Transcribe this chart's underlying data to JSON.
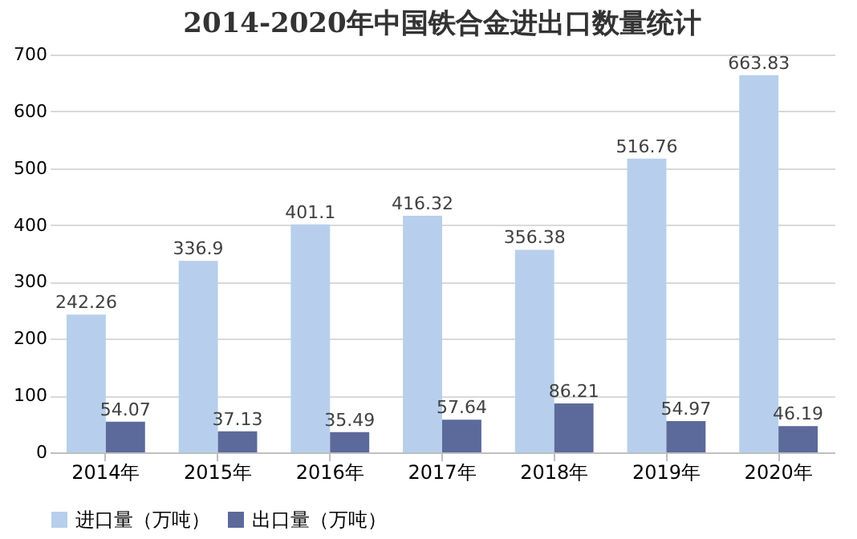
{
  "chart_data": {
    "type": "bar",
    "title": "2014-2020年中国铁合金进出口数量统计",
    "categories": [
      "2014年",
      "2015年",
      "2016年",
      "2017年",
      "2018年",
      "2019年",
      "2020年"
    ],
    "series": [
      {
        "name": "进口量（万吨）",
        "color": "#b7cfec",
        "values": [
          242.26,
          336.9,
          401.1,
          416.32,
          356.38,
          516.76,
          663.83
        ]
      },
      {
        "name": "出口量（万吨）",
        "color": "#5b6a9a",
        "values": [
          54.07,
          37.13,
          35.49,
          57.64,
          86.21,
          54.97,
          46.19
        ]
      }
    ],
    "ylim": [
      0,
      700
    ],
    "yticks": [
      0,
      100,
      200,
      300,
      400,
      500,
      600,
      700
    ],
    "grid": "y",
    "legend": "bottom",
    "data_labels": true
  }
}
